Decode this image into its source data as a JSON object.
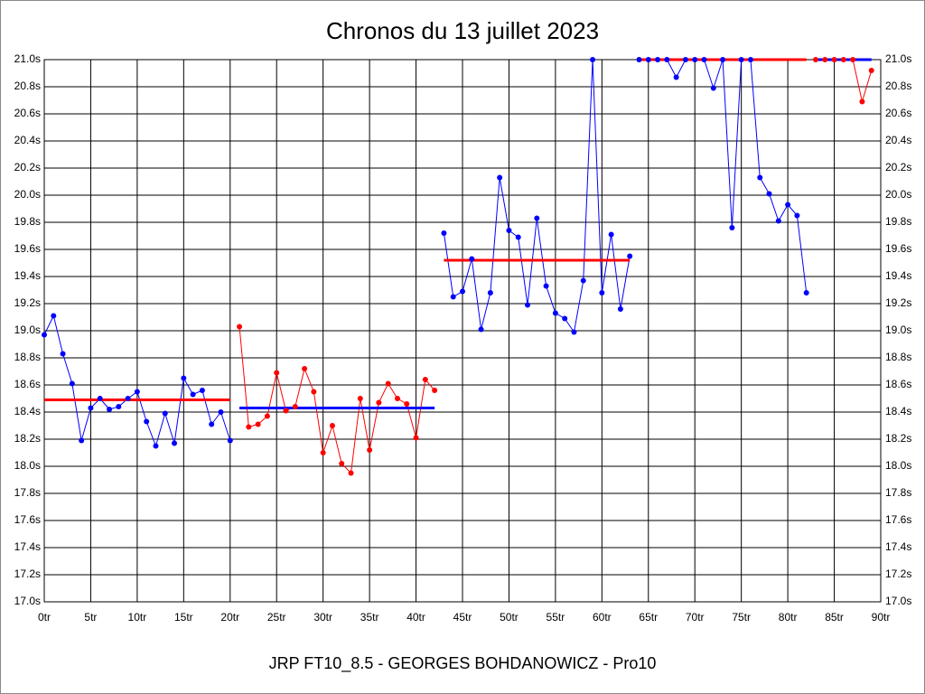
{
  "chart_data": {
    "type": "line",
    "title": "Chronos du 13 juillet 2023",
    "footer": "JRP FT10_8.5 - GEORGES BOHDANOWICZ - Pro10",
    "grid": true,
    "xlim": [
      0,
      90
    ],
    "xticks": [
      {
        "value": 0,
        "label": "0tr"
      },
      {
        "value": 5,
        "label": "5tr"
      },
      {
        "value": 10,
        "label": "10tr"
      },
      {
        "value": 15,
        "label": "15tr"
      },
      {
        "value": 20,
        "label": "20tr"
      },
      {
        "value": 25,
        "label": "25tr"
      },
      {
        "value": 30,
        "label": "30tr"
      },
      {
        "value": 35,
        "label": "35tr"
      },
      {
        "value": 40,
        "label": "40tr"
      },
      {
        "value": 45,
        "label": "45tr"
      },
      {
        "value": 50,
        "label": "50tr"
      },
      {
        "value": 55,
        "label": "55tr"
      },
      {
        "value": 60,
        "label": "60tr"
      },
      {
        "value": 65,
        "label": "65tr"
      },
      {
        "value": 70,
        "label": "70tr"
      },
      {
        "value": 75,
        "label": "75tr"
      },
      {
        "value": 80,
        "label": "80tr"
      },
      {
        "value": 85,
        "label": "85tr"
      },
      {
        "value": 90,
        "label": "90tr"
      }
    ],
    "ylim": [
      17.0,
      21.0
    ],
    "yticks": [
      {
        "value": 17.0,
        "label": "17.0s"
      },
      {
        "value": 17.2,
        "label": "17.2s"
      },
      {
        "value": 17.4,
        "label": "17.4s"
      },
      {
        "value": 17.6,
        "label": "17.6s"
      },
      {
        "value": 17.8,
        "label": "17.8s"
      },
      {
        "value": 18.0,
        "label": "18.0s"
      },
      {
        "value": 18.2,
        "label": "18.2s"
      },
      {
        "value": 18.4,
        "label": "18.4s"
      },
      {
        "value": 18.6,
        "label": "18.6s"
      },
      {
        "value": 18.8,
        "label": "18.8s"
      },
      {
        "value": 19.0,
        "label": "19.0s"
      },
      {
        "value": 19.2,
        "label": "19.2s"
      },
      {
        "value": 19.4,
        "label": "19.4s"
      },
      {
        "value": 19.6,
        "label": "19.6s"
      },
      {
        "value": 19.8,
        "label": "19.8s"
      },
      {
        "value": 20.0,
        "label": "20.0s"
      },
      {
        "value": 20.2,
        "label": "20.2s"
      },
      {
        "value": 20.4,
        "label": "20.4s"
      },
      {
        "value": 20.6,
        "label": "20.6s"
      },
      {
        "value": 20.8,
        "label": "20.8s"
      },
      {
        "value": 21.0,
        "label": "21.0s"
      }
    ],
    "series": [
      {
        "color": "#0000ff",
        "x": [
          0,
          1,
          2,
          3,
          4,
          5,
          6,
          7,
          8,
          9,
          10,
          11,
          12,
          13,
          14,
          15,
          16,
          17,
          18,
          19,
          20
        ],
        "values": [
          18.97,
          19.11,
          18.83,
          18.61,
          18.19,
          18.43,
          18.5,
          18.42,
          18.44,
          18.5,
          18.55,
          18.33,
          18.15,
          18.39,
          18.17,
          18.65,
          18.53,
          18.56,
          18.31,
          18.4,
          18.19
        ]
      },
      {
        "color": "#ff0000",
        "x": [
          21,
          22,
          23,
          24,
          25,
          26,
          27,
          28,
          29,
          30,
          31,
          32,
          33,
          34,
          35,
          36,
          37,
          38,
          39,
          40,
          41,
          42
        ],
        "values": [
          19.03,
          18.29,
          18.31,
          18.37,
          18.69,
          18.41,
          18.44,
          18.72,
          18.55,
          18.1,
          18.3,
          18.02,
          17.95,
          18.5,
          18.12,
          18.47,
          18.61,
          18.5,
          18.46,
          18.21,
          18.64,
          18.56
        ]
      },
      {
        "color": "#0000ff",
        "x": [
          43,
          44,
          45,
          46,
          47,
          48,
          49,
          50,
          51,
          52,
          53,
          54,
          55,
          56,
          57,
          58,
          59,
          60,
          61,
          62,
          63
        ],
        "values": [
          19.72,
          19.25,
          19.29,
          19.53,
          19.01,
          19.28,
          20.13,
          19.74,
          19.69,
          19.19,
          19.83,
          19.33,
          19.13,
          19.09,
          18.99,
          19.37,
          21.0,
          19.28,
          19.71,
          19.16,
          19.55
        ]
      },
      {
        "color": "#0000ff",
        "x": [
          64,
          65,
          66,
          67,
          68,
          69,
          70,
          71,
          72,
          73,
          74,
          75,
          76,
          77,
          78,
          79,
          80,
          81,
          82
        ],
        "values": [
          21.0,
          21.0,
          21.0,
          21.0,
          20.87,
          21.0,
          21.0,
          21.0,
          20.79,
          21.0,
          19.76,
          21.0,
          21.0,
          20.13,
          20.01,
          19.81,
          19.93,
          19.85,
          19.28
        ]
      },
      {
        "color": "#ff0000",
        "x": [
          83,
          84,
          85,
          86,
          87,
          88,
          89
        ],
        "values": [
          21.0,
          21.0,
          21.0,
          21.0,
          21.0,
          20.69,
          20.92
        ]
      }
    ],
    "averages": [
      {
        "color": "#ff0000",
        "x": [
          0,
          20
        ],
        "value": 18.49
      },
      {
        "color": "#0000ff",
        "x": [
          21,
          42
        ],
        "value": 18.43
      },
      {
        "color": "#ff0000",
        "x": [
          43,
          63
        ],
        "value": 19.52
      },
      {
        "color": "#ff0000",
        "x": [
          64,
          82
        ],
        "value": 21.0
      },
      {
        "color": "#0000ff",
        "x": [
          83,
          89
        ],
        "value": 21.0
      }
    ]
  }
}
